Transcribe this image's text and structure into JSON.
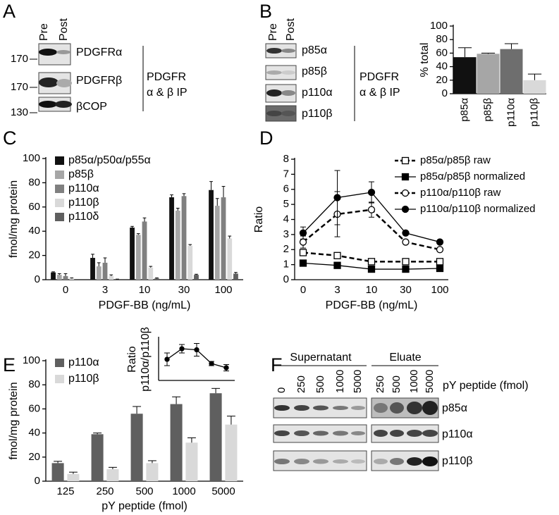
{
  "panel_labels": [
    "A",
    "B",
    "C",
    "D",
    "E",
    "F"
  ],
  "blot_A": {
    "lanes": [
      "Pre",
      "Post"
    ],
    "markers": [
      170,
      170,
      130
    ],
    "proteins": [
      "PDGFRα",
      "PDGFRβ",
      "βCOP"
    ],
    "ip": [
      "PDGFR",
      "α & β IP"
    ]
  },
  "blot_B": {
    "lanes": [
      "Pre",
      "Post"
    ],
    "proteins": [
      "p85α",
      "p85β",
      "p110α",
      "p110β"
    ],
    "ip": [
      "PDGFR",
      "α & β IP"
    ]
  },
  "blot_F": {
    "groups": [
      "Supernatant",
      "Eluate"
    ],
    "supernatant_lanes": [
      0,
      250,
      500,
      1000,
      5000
    ],
    "eluate_lanes": [
      250,
      500,
      1000,
      5000
    ],
    "lane_title": "pY peptide (fmol)",
    "proteins": [
      "p85α",
      "p110α",
      "p110β"
    ]
  },
  "chart_data": [
    {
      "type": "bar",
      "ylabel": "% total",
      "categories": [
        "p85α",
        "p85β",
        "p110α",
        "p110β"
      ],
      "values": [
        54,
        59,
        66,
        20
      ],
      "errors": [
        14,
        1,
        8,
        9
      ],
      "colors": [
        "#111111",
        "#a6a6a6",
        "#6e6e6e",
        "#d9d9d9"
      ],
      "ylim": [
        0,
        100
      ],
      "yticks": [
        0,
        20,
        40,
        60,
        80,
        100
      ]
    },
    {
      "type": "bar",
      "ylabel": "fmol/mg protein",
      "xlabel": "PDGF-BB (ng/mL)",
      "categories": [
        "0",
        "3",
        "10",
        "30",
        "100"
      ],
      "series": [
        {
          "name": "p85α/p50α/p55α",
          "color": "#111111",
          "values": [
            6,
            18,
            43,
            68,
            74
          ],
          "errors": [
            0.5,
            3,
            1,
            2,
            7
          ]
        },
        {
          "name": "p85β",
          "color": "#a6a6a6",
          "values": [
            4,
            11,
            37,
            57,
            61
          ],
          "errors": [
            1,
            3,
            1,
            2,
            6
          ]
        },
        {
          "name": "p110α",
          "color": "#808080",
          "values": [
            3,
            14,
            48,
            69,
            68
          ],
          "errors": [
            2,
            4,
            3,
            2,
            9
          ]
        },
        {
          "name": "p110β",
          "color": "#d9d9d9",
          "values": [
            1,
            3,
            10,
            28,
            34
          ],
          "errors": [
            0.5,
            1,
            1,
            1,
            2
          ]
        },
        {
          "name": "p110δ",
          "color": "#5f5f5f",
          "values": [
            0,
            0.5,
            1,
            4,
            5
          ],
          "errors": [
            0,
            0,
            0.5,
            0.5,
            1
          ]
        }
      ],
      "ylim": [
        0,
        100
      ],
      "yticks": [
        0,
        20,
        40,
        60,
        80,
        100
      ],
      "legend": "upper left"
    },
    {
      "type": "line",
      "ylabel": "Ratio",
      "xlabel": "PDGF-BB (ng/mL)",
      "categories": [
        "0",
        "3",
        "10",
        "30",
        "100"
      ],
      "series": [
        {
          "name": "p85α/p85β raw",
          "color": "#000000",
          "style": "dashed",
          "marker": "square",
          "filled": false,
          "values": [
            1.8,
            1.6,
            1.2,
            1.2,
            1.2
          ],
          "errors": [
            0.2,
            0.1,
            0.1,
            0.1,
            0.1
          ]
        },
        {
          "name": "p85α/p85β normalized",
          "color": "#000000",
          "style": "solid",
          "marker": "square",
          "filled": true,
          "values": [
            1.1,
            0.95,
            0.7,
            0.7,
            0.75
          ],
          "errors": [
            0.1,
            0.1,
            0.1,
            0.1,
            0.1
          ]
        },
        {
          "name": "p110α/p110β raw",
          "color": "#000000",
          "style": "dashed",
          "marker": "circle",
          "filled": false,
          "values": [
            2.5,
            4.35,
            4.65,
            2.5,
            2.0
          ],
          "errors": [
            0.4,
            1.5,
            0.5,
            0.1,
            0.1
          ]
        },
        {
          "name": "p110α/p110β normalized",
          "color": "#000000",
          "style": "solid",
          "marker": "circle",
          "filled": true,
          "values": [
            3.1,
            5.45,
            5.8,
            3.1,
            2.5
          ],
          "errors": [
            0.4,
            1.8,
            0.7,
            0.1,
            0.1
          ]
        }
      ],
      "ylim": [
        0,
        8
      ],
      "yticks": [
        0,
        1,
        2,
        3,
        4,
        5,
        6,
        7,
        8
      ],
      "legend": "upper right"
    },
    {
      "type": "bar",
      "ylabel": "fmol/mg protein",
      "xlabel": "pY peptide (fmol)",
      "categories": [
        "125",
        "250",
        "500",
        "1000",
        "5000"
      ],
      "series": [
        {
          "name": "p110α",
          "color": "#5f5f5f",
          "values": [
            15,
            39,
            56,
            64,
            73
          ],
          "errors": [
            1.5,
            1,
            6,
            6,
            4
          ]
        },
        {
          "name": "p110β",
          "color": "#d9d9d9",
          "values": [
            6,
            10,
            15,
            32,
            47
          ],
          "errors": [
            1.5,
            1.5,
            2,
            4,
            7
          ]
        }
      ],
      "ylim": [
        0,
        100
      ],
      "yticks": [
        0,
        20,
        40,
        60,
        80,
        100
      ],
      "legend": "upper left"
    },
    {
      "type": "line",
      "ylabel": [
        "Ratio",
        "p110α/p110β"
      ],
      "categories": [
        null,
        null,
        null,
        null,
        null
      ],
      "values": [
        2.0,
        3.0,
        2.9,
        1.6,
        1.2
      ],
      "errors": [
        0.6,
        0.4,
        0.6,
        0.2,
        0.3
      ],
      "color": "#000000",
      "style": "solid",
      "marker": "circle",
      "filled": true,
      "ylim": [
        0,
        4
      ]
    }
  ]
}
